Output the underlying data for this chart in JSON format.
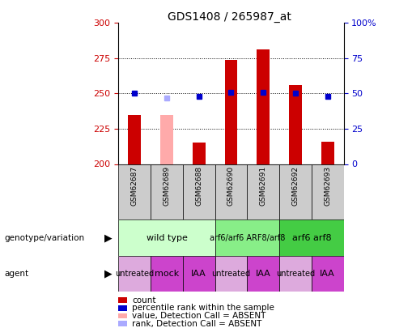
{
  "title": "GDS1408 / 265987_at",
  "samples": [
    "GSM62687",
    "GSM62689",
    "GSM62688",
    "GSM62690",
    "GSM62691",
    "GSM62692",
    "GSM62693"
  ],
  "count_values": [
    235,
    235,
    215,
    274,
    281,
    256,
    216
  ],
  "count_absent": [
    false,
    true,
    false,
    false,
    false,
    false,
    false
  ],
  "percentile_values": [
    50,
    47,
    48,
    51,
    51,
    50,
    48
  ],
  "percentile_absent": [
    false,
    true,
    false,
    false,
    false,
    false,
    false
  ],
  "ylim_left": [
    200,
    300
  ],
  "ylim_right": [
    0,
    100
  ],
  "yticks_left": [
    200,
    225,
    250,
    275,
    300
  ],
  "yticks_right": [
    0,
    25,
    50,
    75,
    100
  ],
  "genotype_groups": [
    {
      "label": "wild type",
      "start": 0,
      "end": 3,
      "color": "#ccffcc"
    },
    {
      "label": "arf6/arf6 ARF8/arf8",
      "start": 3,
      "end": 5,
      "color": "#88ee88"
    },
    {
      "label": "arf6 arf8",
      "start": 5,
      "end": 7,
      "color": "#44cc44"
    }
  ],
  "agent_groups": [
    {
      "label": "untreated",
      "start": 0,
      "end": 1,
      "color": "#ddaadd"
    },
    {
      "label": "mock",
      "start": 1,
      "end": 2,
      "color": "#cc44cc"
    },
    {
      "label": "IAA",
      "start": 2,
      "end": 3,
      "color": "#cc44cc"
    },
    {
      "label": "untreated",
      "start": 3,
      "end": 4,
      "color": "#ddaadd"
    },
    {
      "label": "IAA",
      "start": 4,
      "end": 5,
      "color": "#cc44cc"
    },
    {
      "label": "untreated",
      "start": 5,
      "end": 6,
      "color": "#ddaadd"
    },
    {
      "label": "IAA",
      "start": 6,
      "end": 7,
      "color": "#cc44cc"
    }
  ],
  "bar_color_present": "#cc0000",
  "bar_color_absent": "#ffaaaa",
  "dot_color_present": "#0000cc",
  "dot_color_absent": "#aaaaff",
  "left_label_color": "#cc0000",
  "right_label_color": "#0000cc",
  "right_tick_labels": [
    "0",
    "25",
    "50",
    "75",
    "100%"
  ],
  "grid_lines": [
    225,
    250,
    275
  ],
  "bar_width": 0.4,
  "legend": [
    {
      "label": "count",
      "color": "#cc0000",
      "shape": "rect"
    },
    {
      "label": "percentile rank within the sample",
      "color": "#0000cc",
      "shape": "rect"
    },
    {
      "label": "value, Detection Call = ABSENT",
      "color": "#ffaaaa",
      "shape": "rect"
    },
    {
      "label": "rank, Detection Call = ABSENT",
      "color": "#aaaaff",
      "shape": "rect"
    }
  ]
}
